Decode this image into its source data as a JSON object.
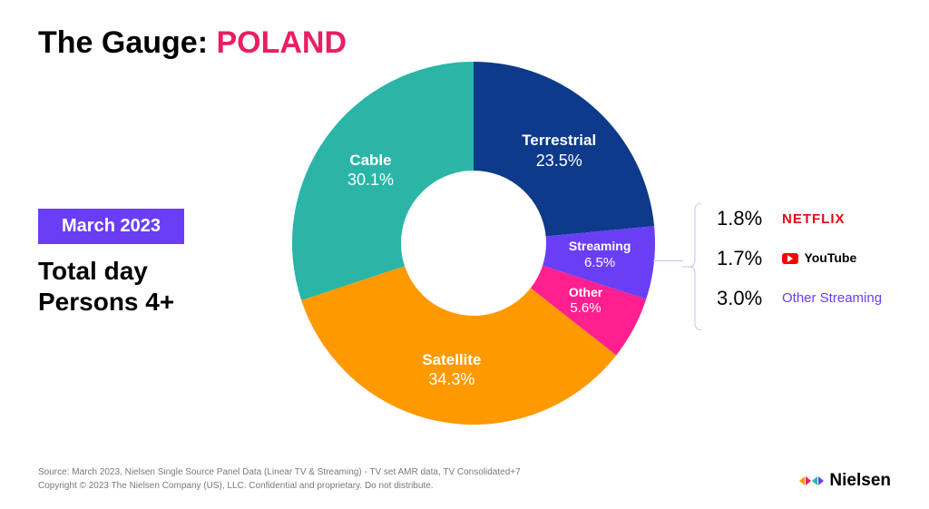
{
  "title_prefix": "The Gauge: ",
  "title_accent": "POLAND",
  "title_color": "#000000",
  "title_accent_color": "#e91e63",
  "date_badge": "March 2023",
  "date_badge_bg": "#6a3ef5",
  "subtitle_line1": "Total day",
  "subtitle_line2": "Persons 4+",
  "chart": {
    "type": "donut",
    "inner_radius_pct": 40,
    "outer_radius_pct": 100,
    "background_color": "#ffffff",
    "start_angle_deg": 0,
    "slices": [
      {
        "name": "Terrestrial",
        "pct": 23.5,
        "color": "#0d3a8a",
        "label_color": "#ffffff"
      },
      {
        "name": "Streaming",
        "pct": 6.5,
        "color": "#6a3ef5",
        "label_color": "#ffffff"
      },
      {
        "name": "Other",
        "pct": 5.6,
        "color": "#ff1f8f",
        "label_color": "#ffffff"
      },
      {
        "name": "Satellite",
        "pct": 34.3,
        "color": "#ff9900",
        "label_color": "#ffffff"
      },
      {
        "name": "Cable",
        "pct": 30.1,
        "color": "#2ab5a7",
        "label_color": "#ffffff"
      }
    ]
  },
  "breakout": {
    "bracket_color": "#c9c2f0",
    "items": [
      {
        "pct": "1.8%",
        "label": "NETFLIX",
        "label_color": "#e50914",
        "kind": "netflix"
      },
      {
        "pct": "1.7%",
        "label": "YouTube",
        "label_color": "#000000",
        "kind": "youtube"
      },
      {
        "pct": "3.0%",
        "label": "Other Streaming",
        "label_color": "#6a3ef5",
        "kind": "text"
      }
    ]
  },
  "footer_line1": "Source: March 2023, Nielsen Single Source Panel Data (Linear TV & Streaming) - TV set AMR data, TV Consolidated+7",
  "footer_line2": "Copyright © 2023 The Nielsen Company (US), LLC. Confidential and proprietary. Do not distribute.",
  "footer_color": "#7a7a7a",
  "brand": {
    "text": "Nielsen",
    "text_color": "#000000",
    "dot_colors": [
      "#ff9900",
      "#e91e63",
      "#2ab5a7",
      "#6a3ef5"
    ]
  }
}
